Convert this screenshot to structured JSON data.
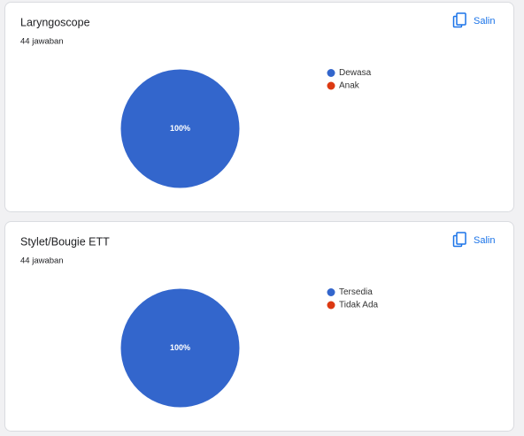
{
  "chart_data": [
    {
      "type": "pie",
      "title": "Laryngoscope",
      "subtitle": "44 jawaban",
      "categories": [
        "Dewasa",
        "Anak"
      ],
      "values": [
        100,
        0
      ],
      "value_labels": [
        "100%",
        null
      ],
      "colors": [
        "#3366cc",
        "#dc3912"
      ]
    },
    {
      "type": "pie",
      "title": "Stylet/Bougie ETT",
      "subtitle": "44 jawaban",
      "categories": [
        "Tersedia",
        "Tidak Ada"
      ],
      "values": [
        100,
        0
      ],
      "value_labels": [
        "100%",
        null
      ],
      "colors": [
        "#3366cc",
        "#dc3912"
      ]
    }
  ],
  "buttons": [
    "Salin",
    "Salin"
  ]
}
